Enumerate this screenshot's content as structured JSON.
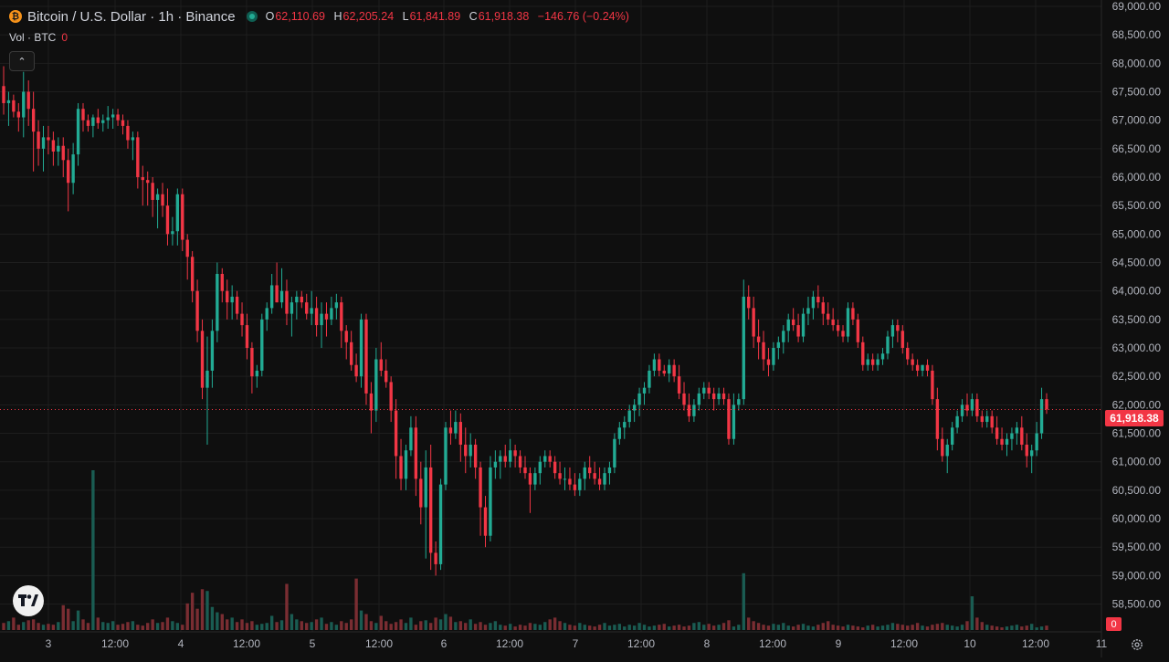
{
  "header": {
    "coin_icon": "bitcoin-icon",
    "coin_glyph": "₿",
    "title": "Bitcoin / U.S. Dollar · 1h · Binance",
    "live_indicator": "live-dot-icon",
    "ohlc": {
      "o_label": "O",
      "o_value": "62,110.69",
      "h_label": "H",
      "h_value": "62,205.24",
      "l_label": "L",
      "l_value": "61,841.89",
      "c_label": "C",
      "c_value": "61,918.38",
      "change": "−146.76 (−0.24%)"
    }
  },
  "volume_legend": {
    "label": "Vol · BTC",
    "value": "0"
  },
  "collapse_glyph": "⌃",
  "price_axis": {
    "ticks": [
      "69,000.00",
      "68,500.00",
      "68,000.00",
      "67,500.00",
      "67,000.00",
      "66,500.00",
      "66,000.00",
      "65,500.00",
      "65,000.00",
      "64,500.00",
      "64,000.00",
      "63,500.00",
      "63,000.00",
      "62,500.00",
      "62,000.00",
      "61,500.00",
      "61,000.00",
      "60,500.00",
      "60,000.00",
      "59,500.00",
      "59,000.00",
      "58,500.00"
    ],
    "current_price_label": "61,918.38",
    "volume_label": "0"
  },
  "time_axis": {
    "labels": [
      "3",
      "12:00",
      "4",
      "12:00",
      "5",
      "12:00",
      "6",
      "12:00",
      "7",
      "12:00",
      "8",
      "12:00",
      "9",
      "12:00",
      "10",
      "12:00",
      "11"
    ]
  },
  "colors": {
    "up": "#22ab94",
    "down": "#f23645",
    "up_vol": "#1a5c52",
    "down_vol": "#7a2d32",
    "background": "#0f0f0f",
    "grid": "#1e1e1e",
    "axis_text": "#b2b5be"
  },
  "chart_data": {
    "type": "candlestick",
    "symbol": "BTCUSD",
    "interval": "1h",
    "ylim": [
      58300,
      69000
    ],
    "current_price": 61918.38,
    "candles": [
      [
        67600,
        67950,
        67100,
        67300
      ],
      [
        67300,
        67500,
        66900,
        67350
      ],
      [
        67350,
        67450,
        67050,
        67150
      ],
      [
        67150,
        67300,
        66800,
        67050
      ],
      [
        67050,
        67850,
        66700,
        67500
      ],
      [
        67500,
        67700,
        66900,
        67200
      ],
      [
        67200,
        67500,
        66100,
        66800
      ],
      [
        66800,
        67000,
        66200,
        66500
      ],
      [
        66500,
        66900,
        66100,
        66700
      ],
      [
        66700,
        66900,
        66400,
        66650
      ],
      [
        66650,
        66800,
        66200,
        66450
      ],
      [
        66450,
        66700,
        66200,
        66550
      ],
      [
        66550,
        66700,
        66000,
        66300
      ],
      [
        66300,
        66500,
        65400,
        65900
      ],
      [
        65900,
        66600,
        65700,
        66400
      ],
      [
        66400,
        67300,
        66200,
        67200
      ],
      [
        67200,
        67300,
        66800,
        67000
      ],
      [
        67000,
        67100,
        66800,
        66900
      ],
      [
        66900,
        67100,
        66700,
        67050
      ],
      [
        67050,
        67200,
        66850,
        66950
      ],
      [
        66950,
        67100,
        66800,
        67000
      ],
      [
        67000,
        67250,
        66850,
        67050
      ],
      [
        67050,
        67200,
        66850,
        67100
      ],
      [
        67100,
        67200,
        66900,
        67000
      ],
      [
        67000,
        67100,
        66750,
        66900
      ],
      [
        66900,
        67000,
        66500,
        66650
      ],
      [
        66650,
        66800,
        66300,
        66700
      ],
      [
        66700,
        66800,
        65800,
        66000
      ],
      [
        66000,
        66200,
        65500,
        65950
      ],
      [
        65950,
        66100,
        65500,
        65900
      ],
      [
        65900,
        66000,
        65300,
        65600
      ],
      [
        65600,
        65800,
        65100,
        65700
      ],
      [
        65700,
        65900,
        65300,
        65500
      ],
      [
        65500,
        65800,
        64800,
        65000
      ],
      [
        65000,
        65300,
        64800,
        65050
      ],
      [
        65050,
        65800,
        64800,
        65700
      ],
      [
        65700,
        65800,
        64700,
        64900
      ],
      [
        64900,
        65000,
        64200,
        64600
      ],
      [
        64600,
        64700,
        63800,
        64000
      ],
      [
        64000,
        64200,
        63100,
        63300
      ],
      [
        63300,
        63500,
        62100,
        62300
      ],
      [
        62300,
        63200,
        61300,
        62600
      ],
      [
        62600,
        63500,
        62300,
        63300
      ],
      [
        63300,
        64500,
        63100,
        64300
      ],
      [
        64300,
        64400,
        63800,
        64000
      ],
      [
        64000,
        64200,
        63500,
        63800
      ],
      [
        63800,
        64100,
        63500,
        63900
      ],
      [
        63900,
        64000,
        63500,
        63600
      ],
      [
        63600,
        63800,
        63200,
        63400
      ],
      [
        63400,
        63600,
        62800,
        63000
      ],
      [
        63000,
        63100,
        62200,
        62500
      ],
      [
        62500,
        62700,
        62300,
        62600
      ],
      [
        62600,
        63600,
        62500,
        63500
      ],
      [
        63500,
        63800,
        63300,
        63700
      ],
      [
        63700,
        64300,
        63600,
        64100
      ],
      [
        64100,
        64500,
        63800,
        63800
      ],
      [
        63800,
        64400,
        63700,
        64000
      ],
      [
        64000,
        64200,
        63400,
        63600
      ],
      [
        63600,
        63900,
        63200,
        63800
      ],
      [
        63800,
        64000,
        63500,
        63900
      ],
      [
        63900,
        64000,
        63700,
        63800
      ],
      [
        63800,
        63950,
        63500,
        63600
      ],
      [
        63600,
        64000,
        63400,
        63700
      ],
      [
        63700,
        63900,
        63200,
        63400
      ],
      [
        63400,
        63800,
        63000,
        63600
      ],
      [
        63600,
        63800,
        63200,
        63500
      ],
      [
        63500,
        63900,
        63400,
        63700
      ],
      [
        63700,
        63950,
        63500,
        63800
      ],
      [
        63800,
        63900,
        63000,
        63300
      ],
      [
        63300,
        63400,
        62800,
        63100
      ],
      [
        63100,
        63300,
        62600,
        62700
      ],
      [
        62700,
        62900,
        62400,
        62500
      ],
      [
        62500,
        63600,
        62300,
        63500
      ],
      [
        63500,
        63600,
        62000,
        62200
      ],
      [
        62200,
        62400,
        61500,
        61900
      ],
      [
        61900,
        63000,
        61700,
        62800
      ],
      [
        62800,
        63100,
        62500,
        62600
      ],
      [
        62600,
        62800,
        62300,
        62400
      ],
      [
        62400,
        62500,
        61700,
        61900
      ],
      [
        61900,
        62100,
        60700,
        61100
      ],
      [
        61100,
        61400,
        60500,
        60700
      ],
      [
        60700,
        61300,
        60500,
        61200
      ],
      [
        61200,
        61800,
        61100,
        61600
      ],
      [
        61600,
        61800,
        60400,
        60700
      ],
      [
        60700,
        61000,
        59900,
        60200
      ],
      [
        60200,
        61200,
        59300,
        60900
      ],
      [
        60900,
        61300,
        59100,
        59400
      ],
      [
        59400,
        59600,
        59000,
        59200
      ],
      [
        59200,
        60700,
        59100,
        60600
      ],
      [
        60600,
        61700,
        60500,
        61600
      ],
      [
        61600,
        61900,
        61300,
        61500
      ],
      [
        61500,
        61900,
        61400,
        61700
      ],
      [
        61700,
        61850,
        61000,
        61300
      ],
      [
        61300,
        61600,
        60800,
        61100
      ],
      [
        61100,
        61500,
        60900,
        61300
      ],
      [
        61300,
        61400,
        60700,
        60900
      ],
      [
        60900,
        61000,
        59700,
        60200
      ],
      [
        60200,
        60400,
        59500,
        59700
      ],
      [
        59700,
        61100,
        59600,
        60900
      ],
      [
        60900,
        61200,
        60700,
        61000
      ],
      [
        61000,
        61200,
        60700,
        61100
      ],
      [
        61100,
        61300,
        60900,
        61000
      ],
      [
        61000,
        61400,
        60900,
        61200
      ],
      [
        61200,
        61300,
        60900,
        61100
      ],
      [
        61100,
        61200,
        60800,
        60900
      ],
      [
        60900,
        61100,
        60700,
        60800
      ],
      [
        60800,
        60900,
        60100,
        60600
      ],
      [
        60600,
        60900,
        60500,
        60800
      ],
      [
        60800,
        61100,
        60600,
        61000
      ],
      [
        61000,
        61200,
        60900,
        61100
      ],
      [
        61100,
        61200,
        60900,
        61000
      ],
      [
        61000,
        61100,
        60700,
        60800
      ],
      [
        60800,
        61000,
        60600,
        60700
      ],
      [
        60700,
        60900,
        60500,
        60700
      ],
      [
        60700,
        60900,
        60500,
        60600
      ],
      [
        60600,
        60800,
        60400,
        60500
      ],
      [
        60500,
        60800,
        60400,
        60700
      ],
      [
        60700,
        61000,
        60500,
        60900
      ],
      [
        60900,
        61100,
        60700,
        60800
      ],
      [
        60800,
        61000,
        60600,
        60700
      ],
      [
        60700,
        60900,
        60500,
        60600
      ],
      [
        60600,
        60900,
        60500,
        60800
      ],
      [
        60800,
        61000,
        60600,
        60900
      ],
      [
        60900,
        61500,
        60800,
        61400
      ],
      [
        61400,
        61700,
        61300,
        61600
      ],
      [
        61600,
        61800,
        61400,
        61700
      ],
      [
        61700,
        62000,
        61600,
        61900
      ],
      [
        61900,
        62100,
        61700,
        62000
      ],
      [
        62000,
        62300,
        61800,
        62200
      ],
      [
        62200,
        62400,
        62000,
        62300
      ],
      [
        62300,
        62700,
        62200,
        62600
      ],
      [
        62600,
        62900,
        62500,
        62800
      ],
      [
        62800,
        62900,
        62500,
        62600
      ],
      [
        62600,
        62700,
        62500,
        62550
      ],
      [
        62550,
        62800,
        62400,
        62700
      ],
      [
        62700,
        62800,
        62400,
        62500
      ],
      [
        62500,
        62700,
        62100,
        62200
      ],
      [
        62200,
        62400,
        61900,
        62000
      ],
      [
        62000,
        62200,
        61700,
        61800
      ],
      [
        61800,
        62100,
        61700,
        62000
      ],
      [
        62000,
        62300,
        61900,
        62200
      ],
      [
        62200,
        62400,
        62100,
        62300
      ],
      [
        62300,
        62400,
        62100,
        62200
      ],
      [
        62200,
        62300,
        61900,
        62100
      ],
      [
        62100,
        62300,
        62000,
        62200
      ],
      [
        62200,
        62300,
        62000,
        62100
      ],
      [
        62100,
        62200,
        61300,
        61400
      ],
      [
        61400,
        62200,
        61300,
        62000
      ],
      [
        62000,
        62200,
        61900,
        62100
      ],
      [
        62100,
        64200,
        62000,
        63900
      ],
      [
        63900,
        64100,
        63500,
        63700
      ],
      [
        63700,
        63900,
        63000,
        63200
      ],
      [
        63200,
        63500,
        62800,
        63100
      ],
      [
        63100,
        63300,
        62600,
        62800
      ],
      [
        62800,
        63000,
        62500,
        62700
      ],
      [
        62700,
        63100,
        62600,
        63000
      ],
      [
        63000,
        63200,
        62800,
        63100
      ],
      [
        63100,
        63400,
        62900,
        63300
      ],
      [
        63300,
        63600,
        63100,
        63500
      ],
      [
        63500,
        63700,
        63300,
        63400
      ],
      [
        63400,
        63600,
        63100,
        63200
      ],
      [
        63200,
        63700,
        63100,
        63600
      ],
      [
        63600,
        63900,
        63400,
        63700
      ],
      [
        63700,
        64000,
        63500,
        63900
      ],
      [
        63900,
        64100,
        63700,
        63800
      ],
      [
        63800,
        63900,
        63400,
        63600
      ],
      [
        63600,
        63800,
        63400,
        63500
      ],
      [
        63500,
        63700,
        63300,
        63400
      ],
      [
        63400,
        63500,
        63200,
        63300
      ],
      [
        63300,
        63400,
        63100,
        63200
      ],
      [
        63200,
        63800,
        63100,
        63700
      ],
      [
        63700,
        63800,
        63400,
        63500
      ],
      [
        63500,
        63600,
        63000,
        63100
      ],
      [
        63100,
        63200,
        62600,
        62700
      ],
      [
        62700,
        62900,
        62600,
        62800
      ],
      [
        62800,
        62900,
        62600,
        62700
      ],
      [
        62700,
        62900,
        62600,
        62800
      ],
      [
        62800,
        63000,
        62700,
        62900
      ],
      [
        62900,
        63300,
        62800,
        63200
      ],
      [
        63200,
        63500,
        63000,
        63400
      ],
      [
        63400,
        63500,
        63100,
        63300
      ],
      [
        63300,
        63400,
        62900,
        63000
      ],
      [
        63000,
        63100,
        62700,
        62800
      ],
      [
        62800,
        62900,
        62600,
        62700
      ],
      [
        62700,
        62800,
        62500,
        62600
      ],
      [
        62600,
        62700,
        62500,
        62700
      ],
      [
        62700,
        62800,
        62500,
        62600
      ],
      [
        62600,
        62700,
        62000,
        62100
      ],
      [
        62100,
        62300,
        61200,
        61400
      ],
      [
        61400,
        61600,
        61000,
        61100
      ],
      [
        61100,
        61400,
        60800,
        61300
      ],
      [
        61300,
        61700,
        61200,
        61600
      ],
      [
        61600,
        61900,
        61500,
        61800
      ],
      [
        61800,
        62100,
        61700,
        62000
      ],
      [
        62000,
        62200,
        61800,
        61900
      ],
      [
        61900,
        62200,
        61800,
        62100
      ],
      [
        62100,
        62200,
        61700,
        61800
      ],
      [
        61800,
        61900,
        61600,
        61700
      ],
      [
        61700,
        61900,
        61600,
        61800
      ],
      [
        61800,
        61900,
        61500,
        61600
      ],
      [
        61600,
        61800,
        61300,
        61400
      ],
      [
        61400,
        61600,
        61200,
        61300
      ],
      [
        61300,
        61500,
        61100,
        61400
      ],
      [
        61400,
        61600,
        61200,
        61500
      ],
      [
        61500,
        61700,
        61300,
        61600
      ],
      [
        61600,
        61800,
        61200,
        61300
      ],
      [
        61300,
        61500,
        60900,
        61100
      ],
      [
        61100,
        61300,
        60800,
        61200
      ],
      [
        61200,
        61700,
        61100,
        61500
      ],
      [
        61500,
        62300,
        61400,
        62100
      ],
      [
        62100,
        62205,
        61841,
        61918
      ]
    ],
    "volumes": [
      8,
      10,
      14,
      6,
      9,
      11,
      12,
      8,
      6,
      7,
      6,
      9,
      28,
      24,
      10,
      22,
      12,
      8,
      180,
      14,
      9,
      8,
      10,
      6,
      7,
      9,
      10,
      6,
      5,
      8,
      12,
      8,
      9,
      14,
      10,
      8,
      6,
      30,
      42,
      24,
      46,
      44,
      26,
      20,
      18,
      12,
      14,
      9,
      12,
      8,
      10,
      6,
      7,
      8,
      16,
      9,
      11,
      52,
      18,
      12,
      10,
      8,
      9,
      12,
      14,
      7,
      9,
      6,
      10,
      8,
      12,
      58,
      22,
      18,
      10,
      8,
      16,
      10,
      7,
      9,
      12,
      8,
      14,
      6,
      10,
      11,
      8,
      14,
      12,
      18,
      15,
      9,
      10,
      8,
      12,
      7,
      9,
      6,
      8,
      10,
      6,
      5,
      7,
      4,
      6,
      5,
      8,
      7,
      6,
      9,
      12,
      14,
      10,
      8,
      6,
      5,
      8,
      6,
      5,
      4,
      6,
      8,
      5,
      6,
      7,
      4,
      6,
      5,
      8,
      6,
      4,
      5,
      6,
      7,
      4,
      5,
      6,
      4,
      5,
      8,
      9,
      6,
      7,
      5,
      6,
      8,
      11,
      4,
      6,
      64,
      14,
      10,
      8,
      6,
      5,
      7,
      6,
      8,
      5,
      4,
      6,
      7,
      5,
      4,
      6,
      8,
      10,
      6,
      5,
      4,
      6,
      5,
      4,
      3,
      5,
      6,
      4,
      5,
      6,
      8,
      7,
      6,
      5,
      6,
      8,
      5,
      4,
      6,
      7,
      8,
      6,
      5,
      4,
      6,
      10,
      38,
      14,
      9,
      6,
      5,
      4,
      3,
      4,
      5,
      6,
      4,
      5,
      7,
      3,
      4,
      5,
      6,
      4,
      5,
      6,
      8,
      10,
      6,
      5,
      0
    ]
  }
}
